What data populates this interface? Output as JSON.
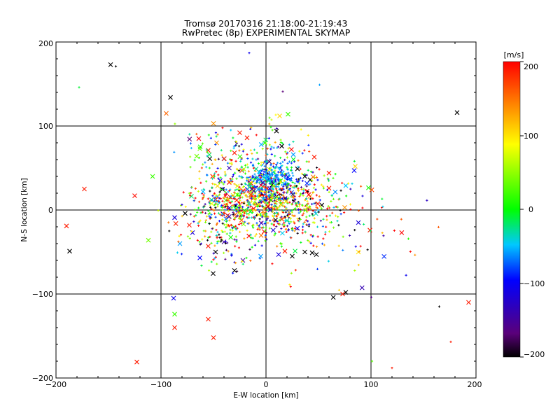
{
  "chart_data": {
    "type": "scatter",
    "title": "Tromsø 20170316 21:18:00-21:19:43",
    "subtitle": "RwPretec (8p) EXPERIMENTAL SKYMAP",
    "xlabel": "E-W location [km]",
    "ylabel": "N-S location [km]",
    "xlim": [
      -200,
      200
    ],
    "ylim": [
      -200,
      200
    ],
    "x_ticks": [
      "−200",
      "−100",
      "0",
      "100",
      "200"
    ],
    "y_ticks": [
      "−200",
      "−100",
      "0",
      "100",
      "200"
    ],
    "grid": true,
    "colorbar": {
      "unit": "[m/s]",
      "min": -200,
      "max": 200,
      "ticks": [
        "200",
        "100",
        "0",
        "−100",
        "−200"
      ],
      "colors": [
        "#000000",
        "#5a007a",
        "#0000ff",
        "#00c8ff",
        "#00ff00",
        "#ffff00",
        "#ff8000",
        "#ff0000"
      ]
    },
    "markers": {
      "x": "large velocity-coloured crosses",
      "plus": "small velocity-coloured plus signs"
    },
    "points": [
      {
        "x": -148,
        "y": 173,
        "v": -200,
        "m": "x"
      },
      {
        "x": -143,
        "y": 171,
        "v": -200,
        "m": "+"
      },
      {
        "x": -91,
        "y": 134,
        "v": -200,
        "m": "x"
      },
      {
        "x": 182,
        "y": 116,
        "v": -200,
        "m": "x"
      },
      {
        "x": -178,
        "y": 146,
        "v": -10,
        "m": "+"
      },
      {
        "x": -16,
        "y": 187,
        "v": -110,
        "m": "+"
      },
      {
        "x": 51,
        "y": 149,
        "v": -60,
        "m": "+"
      },
      {
        "x": -95,
        "y": 115,
        "v": 160,
        "m": "x"
      },
      {
        "x": -50,
        "y": 103,
        "v": 140,
        "m": "x"
      },
      {
        "x": -64,
        "y": 85,
        "v": 200,
        "m": "x"
      },
      {
        "x": 21,
        "y": 114,
        "v": 20,
        "m": "x"
      },
      {
        "x": 13,
        "y": 112,
        "v": 110,
        "m": "x"
      },
      {
        "x": 16,
        "y": 141,
        "v": -170,
        "m": "+"
      },
      {
        "x": -108,
        "y": 40,
        "v": 20,
        "m": "x"
      },
      {
        "x": -173,
        "y": 25,
        "v": 190,
        "m": "x"
      },
      {
        "x": -125,
        "y": 17,
        "v": 195,
        "m": "x"
      },
      {
        "x": -190,
        "y": -19,
        "v": 190,
        "m": "x"
      },
      {
        "x": -187,
        "y": -49,
        "v": -200,
        "m": "x"
      },
      {
        "x": -112,
        "y": -36,
        "v": 40,
        "m": "x"
      },
      {
        "x": -88,
        "y": -105,
        "v": -110,
        "m": "x"
      },
      {
        "x": -87,
        "y": -140,
        "v": 190,
        "m": "x"
      },
      {
        "x": -55,
        "y": -130,
        "v": 190,
        "m": "x"
      },
      {
        "x": -50,
        "y": -152,
        "v": 190,
        "m": "x"
      },
      {
        "x": -123,
        "y": -181,
        "v": 190,
        "m": "x"
      },
      {
        "x": -87,
        "y": -124,
        "v": 20,
        "m": "x"
      },
      {
        "x": 73,
        "y": -100,
        "v": 190,
        "m": "x"
      },
      {
        "x": 76,
        "y": -98,
        "v": -200,
        "m": "x"
      },
      {
        "x": 193,
        "y": -110,
        "v": 190,
        "m": "x"
      },
      {
        "x": 165,
        "y": -115,
        "v": -200,
        "m": "+"
      },
      {
        "x": 176,
        "y": -157,
        "v": 190,
        "m": "+"
      },
      {
        "x": 120,
        "y": -188,
        "v": 190,
        "m": "+"
      },
      {
        "x": 101,
        "y": -180,
        "v": 30,
        "m": "+"
      },
      {
        "x": 88,
        "y": -50,
        "v": 100,
        "m": "x"
      },
      {
        "x": 88,
        "y": -15,
        "v": -120,
        "m": "x"
      },
      {
        "x": 85,
        "y": 52,
        "v": 110,
        "m": "x"
      },
      {
        "x": 84,
        "y": 47,
        "v": -100,
        "m": "x"
      },
      {
        "x": 76,
        "y": 29,
        "v": -50,
        "m": "x"
      },
      {
        "x": 60,
        "y": 44,
        "v": 190,
        "m": "x"
      },
      {
        "x": 46,
        "y": 63,
        "v": 190,
        "m": "x"
      },
      {
        "x": 60,
        "y": 26,
        "v": 190,
        "m": "x"
      },
      {
        "x": 75,
        "y": 3,
        "v": 140,
        "m": "x"
      },
      {
        "x": 99,
        "y": -24,
        "v": 190,
        "m": "x"
      },
      {
        "x": 37,
        "y": -50,
        "v": -200,
        "m": "x"
      },
      {
        "x": 44,
        "y": -51,
        "v": -200,
        "m": "x"
      },
      {
        "x": 25,
        "y": -55,
        "v": -200,
        "m": "x"
      },
      {
        "x": 48,
        "y": -53,
        "v": -200,
        "m": "x"
      },
      {
        "x": 12,
        "y": -53,
        "v": -120,
        "m": "x"
      },
      {
        "x": 18,
        "y": -49,
        "v": 190,
        "m": "x"
      },
      {
        "x": -30,
        "y": -72,
        "v": -200,
        "m": "x"
      },
      {
        "x": -63,
        "y": -57,
        "v": -100,
        "m": "x"
      },
      {
        "x": -55,
        "y": -43,
        "v": 190,
        "m": "x"
      },
      {
        "x": -48,
        "y": -50,
        "v": -200,
        "m": "x"
      },
      {
        "x": -5,
        "y": -55,
        "v": -60,
        "m": "x"
      },
      {
        "x": -22,
        "y": -60,
        "v": -150,
        "m": "x"
      },
      {
        "x": -70,
        "y": -27,
        "v": -120,
        "m": "x"
      },
      {
        "x": -73,
        "y": -18,
        "v": 190,
        "m": "x"
      },
      {
        "x": -82,
        "y": -40,
        "v": -60,
        "m": "x"
      },
      {
        "x": -87,
        "y": -9,
        "v": -120,
        "m": "x"
      },
      {
        "x": -77,
        "y": -4,
        "v": -200,
        "m": "x"
      },
      {
        "x": -40,
        "y": -38,
        "v": -150,
        "m": "x"
      },
      {
        "x": -66,
        "y": 64,
        "v": 40,
        "m": "x"
      },
      {
        "x": -63,
        "y": 73,
        "v": 40,
        "m": "x"
      },
      {
        "x": -55,
        "y": 71,
        "v": 190,
        "m": "x"
      },
      {
        "x": -47,
        "y": 80,
        "v": 140,
        "m": "x"
      },
      {
        "x": -25,
        "y": 92,
        "v": 190,
        "m": "x"
      },
      {
        "x": -18,
        "y": 86,
        "v": 190,
        "m": "x"
      },
      {
        "x": 10,
        "y": 94,
        "v": -200,
        "m": "x"
      },
      {
        "x": -40,
        "y": 61,
        "v": -140,
        "m": "x"
      },
      {
        "x": -30,
        "y": 68,
        "v": 190,
        "m": "x"
      },
      {
        "x": -35,
        "y": 50,
        "v": -140,
        "m": "x"
      },
      {
        "x": -23,
        "y": 47,
        "v": 190,
        "m": "x"
      },
      {
        "x": 30,
        "y": 49,
        "v": -200,
        "m": "x"
      },
      {
        "x": 37,
        "y": 40,
        "v": -200,
        "m": "x"
      },
      {
        "x": 42,
        "y": 36,
        "v": -200,
        "m": "x"
      },
      {
        "x": 26,
        "y": 66,
        "v": -60,
        "m": "x"
      },
      {
        "x": 15,
        "y": 76,
        "v": -200,
        "m": "x"
      },
      {
        "x": 5,
        "y": 12,
        "v": -200,
        "m": "x"
      },
      {
        "x": -8,
        "y": 6,
        "v": -200,
        "m": "x"
      },
      {
        "x": 2,
        "y": 4,
        "v": -200,
        "m": "x"
      },
      {
        "x": -3,
        "y": 10,
        "v": 190,
        "m": "x"
      },
      {
        "x": 10,
        "y": 16,
        "v": -200,
        "m": "x"
      },
      {
        "x": -12,
        "y": 14,
        "v": 190,
        "m": "x"
      }
    ]
  }
}
